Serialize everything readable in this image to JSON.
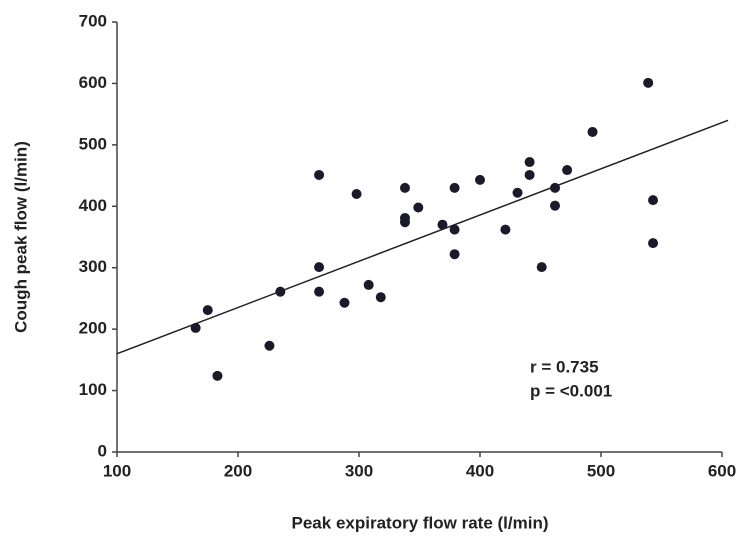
{
  "chart_data": {
    "type": "scatter",
    "x_label": "Peak expiratory flow rate (l/min)",
    "y_label": "Cough peak flow (l/min)",
    "annotations": [
      "r = 0.735",
      "p = <0.001"
    ],
    "xlim": [
      100,
      600
    ],
    "xticks": [
      100,
      200,
      300,
      400,
      500,
      600
    ],
    "ylim": [
      0,
      700
    ],
    "yticks": [
      0,
      100,
      200,
      300,
      400,
      500,
      600,
      700
    ],
    "grid": false,
    "color": "#1a1a2a",
    "x": [
      165,
      175,
      183,
      226,
      235,
      267,
      267,
      267,
      288,
      298,
      308,
      318,
      338,
      338,
      338,
      349,
      369,
      379,
      379,
      379,
      400,
      421,
      431,
      441,
      441,
      451,
      462,
      462,
      472,
      493,
      539,
      543,
      543
    ],
    "values": [
      202,
      231,
      124,
      173,
      261,
      261,
      301,
      451,
      243,
      420,
      272,
      252,
      430,
      374,
      381,
      398,
      370,
      430,
      362,
      322,
      443,
      362,
      422,
      472,
      451,
      301,
      430,
      401,
      459,
      521,
      601,
      410,
      340
    ],
    "trendline": {
      "x": [
        100,
        605
      ],
      "y": [
        160,
        540
      ],
      "color": "#222222"
    }
  }
}
